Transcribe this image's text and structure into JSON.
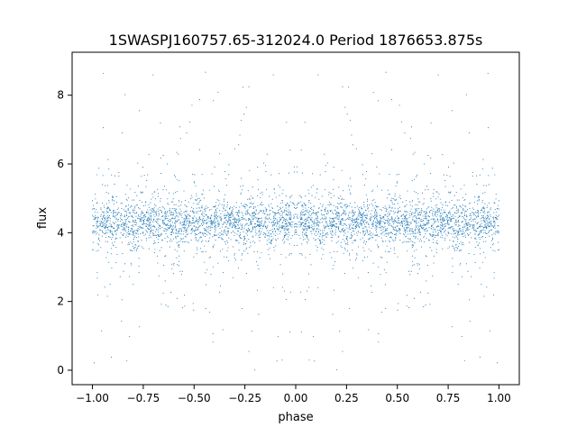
{
  "chart_data": {
    "type": "scatter",
    "title": "1SWASPJ160757.65-312024.0 Period 1876653.875s",
    "xlabel": "phase",
    "ylabel": "flux",
    "xlim": [
      -1.1,
      1.1
    ],
    "ylim": [
      -0.42,
      9.25
    ],
    "x_ticks": [
      -1.0,
      -0.75,
      -0.5,
      -0.25,
      0.0,
      0.25,
      0.5,
      0.75,
      1.0
    ],
    "x_tick_labels": [
      "−1.00",
      "−0.75",
      "−0.50",
      "−0.25",
      "0.00",
      "0.25",
      "0.50",
      "0.75",
      "1.00"
    ],
    "y_ticks": [
      0,
      2,
      4,
      6,
      8
    ],
    "y_tick_labels": [
      "0",
      "2",
      "4",
      "6",
      "8"
    ],
    "grid": false,
    "legend": "none",
    "marker_color": "#1f77b4",
    "series": [
      {
        "phase_range": [
          -1.0,
          1.0
        ],
        "baseline_flux": 4.3,
        "typical_flux_range": [
          3.0,
          5.5
        ],
        "flux_min": 0.0,
        "flux_max": 8.8,
        "mirrored_about_phase_zero": true
      }
    ]
  }
}
